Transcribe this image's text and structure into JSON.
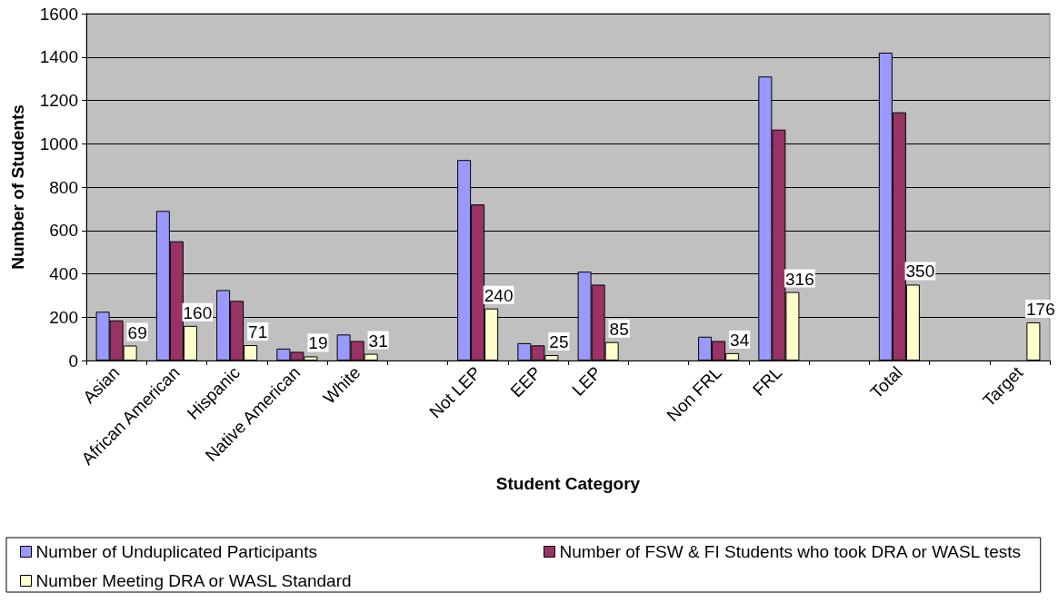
{
  "chart_data": {
    "type": "bar",
    "categories": [
      "Asian",
      "African American",
      "Hispanic",
      "Native American",
      "White",
      null,
      "Not LEP",
      "EEP",
      "LEP",
      null,
      "Non FRL",
      "FRL",
      null,
      "Total",
      null,
      "Target"
    ],
    "series": [
      {
        "name": "Number of Unduplicated Participants",
        "color": "#9999ff",
        "values": [
          225,
          690,
          325,
          55,
          120,
          null,
          925,
          80,
          410,
          null,
          110,
          1310,
          null,
          1420,
          null,
          null
        ]
      },
      {
        "name": "Number of FSW & FI Students who took DRA or WASL tests",
        "color": "#993366",
        "values": [
          185,
          550,
          275,
          40,
          90,
          null,
          720,
          70,
          350,
          null,
          90,
          1065,
          null,
          1145,
          null,
          null
        ]
      },
      {
        "name": "Number Meeting DRA or WASL Standard",
        "color": "#ffffcc",
        "values": [
          69,
          160,
          71,
          19,
          31,
          null,
          240,
          25,
          85,
          null,
          34,
          316,
          null,
          350,
          null,
          176
        ],
        "value_labels": [
          "69",
          "160",
          "71",
          "19",
          "31",
          null,
          "240",
          "25",
          "85",
          null,
          "34",
          "316",
          null,
          "350",
          null,
          "176"
        ]
      }
    ],
    "xlabel": "Student Category",
    "ylabel": "Number of Students",
    "ylim": [
      0,
      1600
    ],
    "yticks": [
      0,
      200,
      400,
      600,
      800,
      1000,
      1200,
      1400,
      1600
    ],
    "grid": "y",
    "legend": "bottom"
  }
}
